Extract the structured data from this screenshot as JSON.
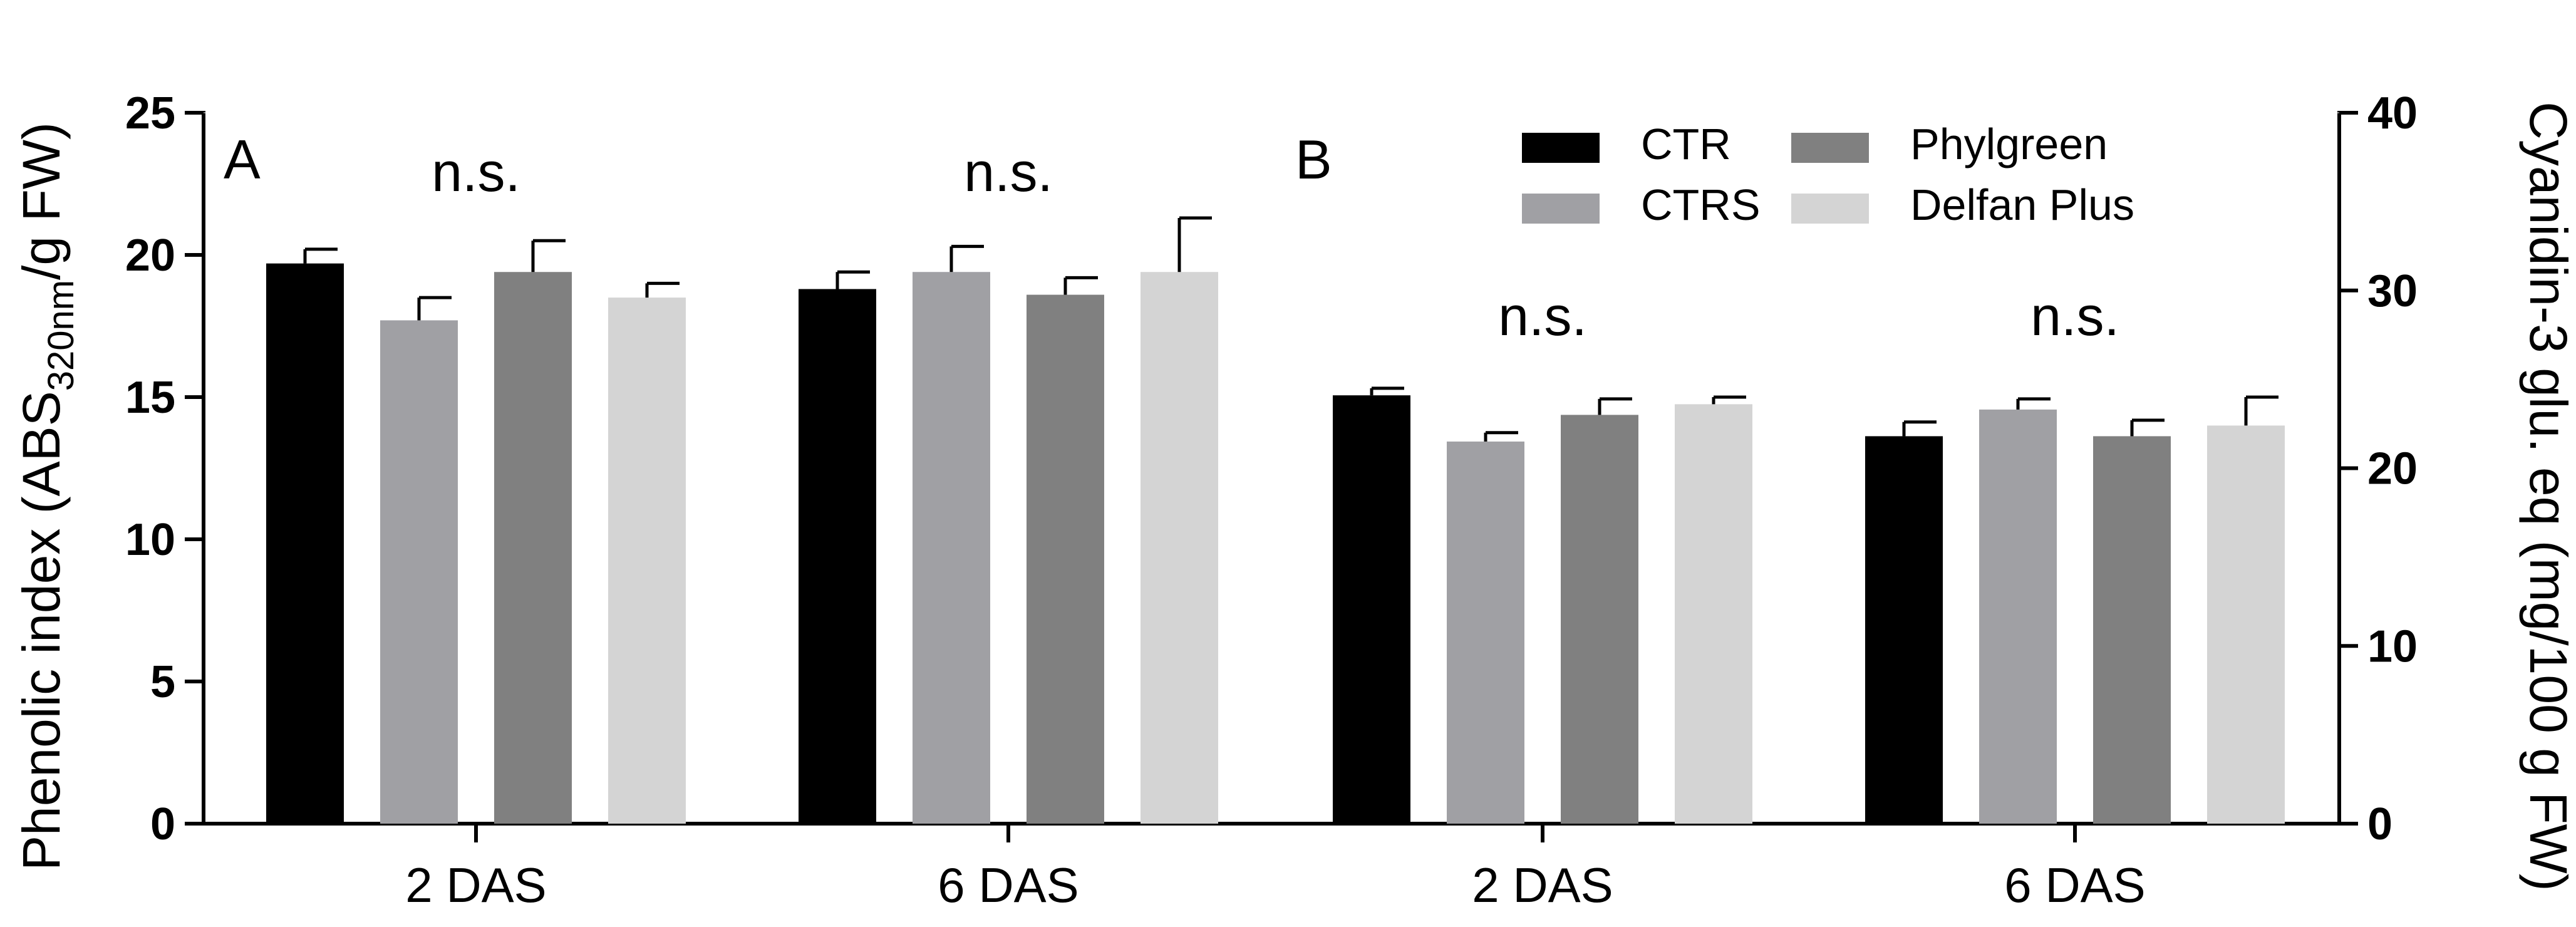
{
  "chart_data": {
    "type": "bar",
    "series_names": [
      "CTR",
      "CTRS",
      "Phylgreen",
      "Delfan Plus"
    ],
    "series_colors": [
      "#000000",
      "#a0a0a4",
      "#808080",
      "#d4d4d4"
    ],
    "categories": [
      "2 DAS",
      "6 DAS"
    ],
    "panels": [
      {
        "panel_label": "A",
        "ylabel_main": "Phenolic index (ABS",
        "ylabel_sub": "320nm",
        "ylabel_tail": "/g FW)",
        "yaxis_side": "left",
        "ylim": [
          0,
          25
        ],
        "yticks": [
          0,
          5,
          10,
          15,
          20,
          25
        ],
        "ytick_labels": [
          "0",
          "5",
          "10",
          "15",
          "20",
          "25"
        ],
        "values": [
          [
            19.7,
            17.7,
            19.4,
            18.5
          ],
          [
            18.8,
            19.4,
            18.6,
            19.4
          ]
        ],
        "errors": [
          [
            0.5,
            0.8,
            1.1,
            0.5
          ],
          [
            0.6,
            0.9,
            0.6,
            1.9
          ]
        ],
        "annotations": [
          "n.s.",
          "n.s."
        ]
      },
      {
        "panel_label": "B",
        "ylabel_main": "Cyanidin-3 glu. eq (mg/100 g FW)",
        "yaxis_side": "right",
        "ylim": [
          0,
          40
        ],
        "yticks": [
          0,
          10,
          20,
          30,
          40
        ],
        "ytick_labels": [
          "0",
          "10",
          "20",
          "30",
          "40"
        ],
        "values": [
          [
            24.1,
            21.5,
            23.0,
            23.6
          ],
          [
            21.8,
            23.3,
            21.8,
            22.4
          ]
        ],
        "errors": [
          [
            0.4,
            0.5,
            0.9,
            0.4
          ],
          [
            0.8,
            0.6,
            0.9,
            1.6
          ]
        ],
        "annotations": [
          "n.s.",
          "n.s."
        ]
      }
    ]
  }
}
